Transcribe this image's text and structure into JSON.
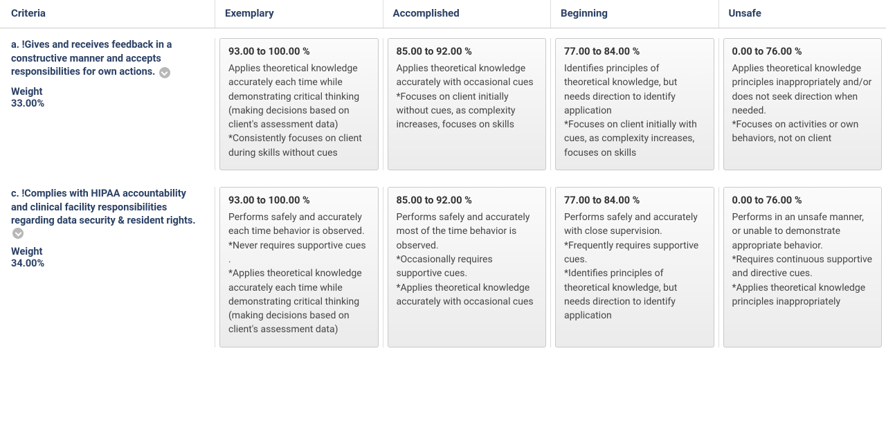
{
  "colors": {
    "header_text": "#2a4065",
    "body_text": "#444444",
    "cell_border": "#c9c9c9",
    "cell_bg_top": "#fbfbfb",
    "cell_bg_bottom": "#ebebeb",
    "divider": "#dddddd",
    "chevron_bg": "#b8b8b8"
  },
  "headers": {
    "criteria": "Criteria",
    "levels": [
      "Exemplary",
      "Accomplished",
      "Beginning",
      "Unsafe"
    ]
  },
  "weight_label": "Weight",
  "rows": [
    {
      "id": "a",
      "title": "a. !Gives and receives feedback in a constructive manner and accepts responsibilities for own actions.",
      "weight": "33.00%",
      "cells": [
        {
          "range": "93.00 to 100.00 %",
          "desc": "Applies theoretical knowledge accurately each time while demonstrating critical thinking (making decisions based on client's assessment data)\n*Consistently focuses on client during skills without cues"
        },
        {
          "range": "85.00 to 92.00 %",
          "desc": "Applies theoretical knowledge accurately with occasional cues\n*Focuses on client initially without cues, as complexity increases, focuses on skills"
        },
        {
          "range": "77.00 to 84.00 %",
          "desc": "Identifies principles of theoretical knowledge, but needs direction to identify application\n*Focuses on client initially with cues, as complexity increases, focuses on skills"
        },
        {
          "range": "0.00 to 76.00 %",
          "desc": "Applies theoretical knowledge principles inappropriately and/or does not seek direction when needed.\n*Focuses on activities or own behaviors, not on client"
        }
      ]
    },
    {
      "id": "c",
      "title": "c. !Complies with HIPAA accountability and clinical facility responsibilities regarding data security & resident rights.",
      "weight": "34.00%",
      "cells": [
        {
          "range": "93.00 to 100.00 %",
          "desc": "Performs safely and accurately each time behavior is observed.\n*Never requires supportive cues .\n*Applies theoretical knowledge accurately each time while demonstrating critical thinking (making decisions based on client's assessment data)"
        },
        {
          "range": "85.00 to 92.00 %",
          "desc": "Performs safely and accurately most of the time behavior is observed.\n*Occasionally requires supportive cues.\n*Applies theoretical knowledge accurately with occasional cues"
        },
        {
          "range": "77.00 to 84.00 %",
          "desc": "Performs safely and accurately with close supervision.\n*Frequently requires supportive cues.\n*Identifies principles of theoretical knowledge, but needs direction to identify application"
        },
        {
          "range": "0.00 to 76.00 %",
          "desc": "Performs in an unsafe manner, or unable to demonstrate appropriate behavior.\n*Requires continuous supportive and directive cues.\n*Applies theoretical knowledge principles inappropriately"
        }
      ]
    }
  ]
}
